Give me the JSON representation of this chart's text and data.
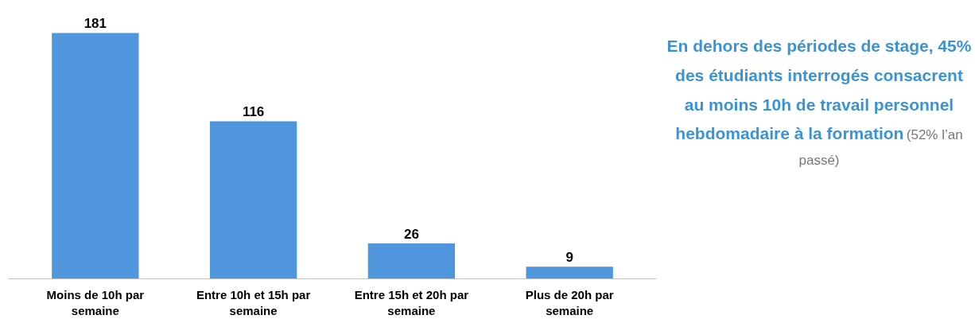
{
  "chart_data": {
    "type": "bar",
    "categories": [
      "Moins de 10h par semaine",
      "Entre 10h et 15h par semaine",
      "Entre 15h et 20h par semaine",
      "Plus de 20h par semaine"
    ],
    "values": [
      181,
      116,
      26,
      9
    ],
    "color": "#4f96dc",
    "data_labels": true,
    "grid": false,
    "annotations": [
      "En dehors des périodes de stage, 45% des étudiants interrogés consacrent au moins 10h de travail personnel hebdomadaire à la formation",
      "(52% l’an passé)"
    ]
  }
}
